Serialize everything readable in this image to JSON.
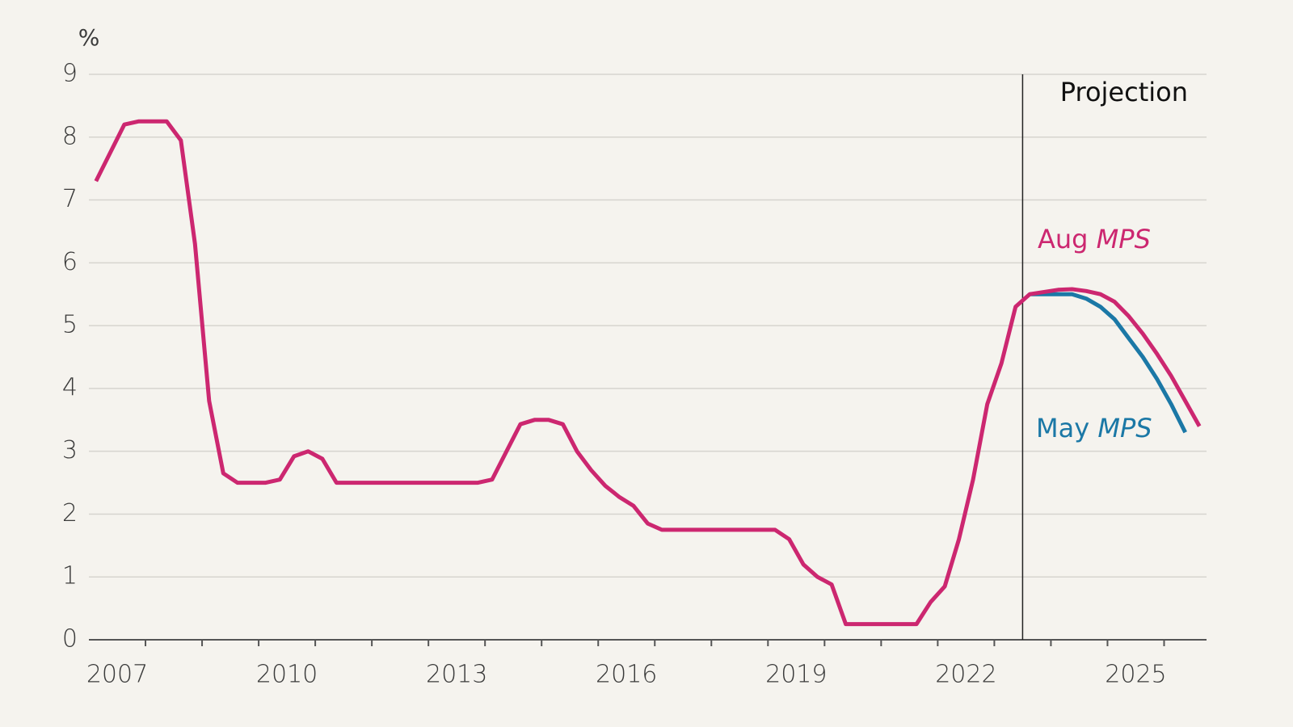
{
  "chart_data": {
    "type": "line",
    "y_unit_label": "%",
    "projection_label": "Projection",
    "projection_start": 2023.5,
    "xlim": [
      2007,
      2026.75
    ],
    "ylim": [
      0,
      9
    ],
    "yticks": [
      0,
      1,
      2,
      3,
      4,
      5,
      6,
      7,
      8,
      9
    ],
    "xticks": [
      {
        "value": 2007.5,
        "label": "2007"
      },
      {
        "value": 2010.5,
        "label": "2010"
      },
      {
        "value": 2013.5,
        "label": "2013"
      },
      {
        "value": 2016.5,
        "label": "2016"
      },
      {
        "value": 2019.5,
        "label": "2019"
      },
      {
        "value": 2022.5,
        "label": "2022"
      },
      {
        "value": 2025.5,
        "label": "2025"
      }
    ],
    "xminor": [
      2008,
      2009,
      2010,
      2011,
      2012,
      2013,
      2014,
      2015,
      2016,
      2017,
      2018,
      2019,
      2020,
      2021,
      2022,
      2023,
      2024,
      2025,
      2026
    ],
    "grid": true,
    "series": [
      {
        "name": "May MPS",
        "color": "#1b78a6",
        "x": [
          2023.625,
          2023.875,
          2024.125,
          2024.375,
          2024.625,
          2024.875,
          2025.125,
          2025.375,
          2025.625,
          2025.875,
          2026.125,
          2026.375
        ],
        "values": [
          5.5,
          5.5,
          5.5,
          5.5,
          5.43,
          5.3,
          5.1,
          4.8,
          4.5,
          4.15,
          3.75,
          3.3
        ]
      },
      {
        "name": "Aug MPS",
        "color": "#cc2770",
        "x": [
          2007.125,
          2007.625,
          2007.875,
          2008.375,
          2008.625,
          2008.875,
          2009.125,
          2009.375,
          2009.625,
          2010.125,
          2010.375,
          2010.625,
          2010.875,
          2011.125,
          2011.375,
          2013.875,
          2014.125,
          2014.625,
          2014.875,
          2015.125,
          2015.375,
          2015.625,
          2015.875,
          2016.125,
          2016.375,
          2016.625,
          2016.875,
          2017.125,
          2019.125,
          2019.375,
          2019.625,
          2019.875,
          2020.125,
          2020.375,
          2021.625,
          2021.875,
          2022.125,
          2022.375,
          2022.625,
          2022.875,
          2023.125,
          2023.375,
          2023.625,
          2024.125,
          2024.375,
          2024.625,
          2024.875,
          2025.125,
          2025.375,
          2025.625,
          2025.875,
          2026.125,
          2026.375,
          2026.625
        ],
        "values": [
          7.3,
          8.2,
          8.25,
          8.25,
          7.95,
          6.3,
          3.8,
          2.65,
          2.5,
          2.5,
          2.55,
          2.92,
          3.0,
          2.88,
          2.5,
          2.5,
          2.55,
          3.43,
          3.5,
          3.5,
          3.43,
          3.0,
          2.7,
          2.45,
          2.27,
          2.13,
          1.85,
          1.75,
          1.75,
          1.6,
          1.2,
          1.0,
          0.88,
          0.25,
          0.25,
          0.6,
          0.85,
          1.6,
          2.55,
          3.75,
          4.4,
          5.3,
          5.5,
          5.57,
          5.58,
          5.55,
          5.5,
          5.38,
          5.15,
          4.87,
          4.55,
          4.2,
          3.8,
          3.4
        ]
      }
    ]
  }
}
